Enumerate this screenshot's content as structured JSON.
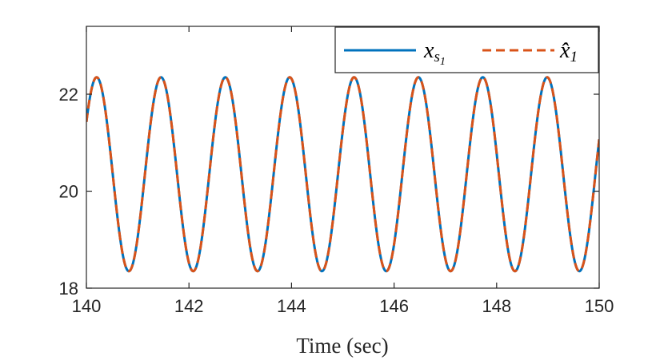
{
  "chart_data": {
    "type": "line",
    "title": "",
    "xlabel": "Time (sec)",
    "ylabel": "",
    "xlim": [
      140,
      150
    ],
    "ylim": [
      18,
      23.4
    ],
    "xticks": [
      140,
      142,
      144,
      146,
      148,
      150
    ],
    "xtick_labels": [
      "140",
      "142",
      "144",
      "146",
      "148",
      "150"
    ],
    "yticks": [
      18,
      20,
      22
    ],
    "ytick_labels": [
      "18",
      "20",
      "22"
    ],
    "grid": false,
    "legend_position": "top-right",
    "series": [
      {
        "name": "x_{s_1}",
        "label_main": "x",
        "label_sub": "s",
        "label_subsub": "1",
        "color": "#0072BD",
        "line_style": "solid",
        "function": "sinusoid",
        "offset": 20.35,
        "amplitude": 2.0,
        "period": 1.255,
        "peak_times": [
          140.2,
          141.47,
          142.72,
          143.97,
          145.22,
          146.47,
          147.73,
          148.98
        ],
        "trough_times": [
          140.82,
          142.08,
          143.34,
          144.6,
          145.85,
          147.1,
          148.36,
          149.6
        ],
        "peak_value": 22.35,
        "trough_value": 18.35,
        "start_value": 21.55,
        "end_value": 20.95
      },
      {
        "name": "x̂_1",
        "label_main": "x̂",
        "label_sub": "1",
        "color": "#D95319",
        "line_style": "dashed",
        "function": "sinusoid",
        "offset": 20.35,
        "amplitude": 2.0,
        "period": 1.255,
        "peak_times": [
          140.2,
          141.47,
          142.72,
          143.97,
          145.22,
          146.47,
          147.73,
          148.98
        ],
        "trough_times": [
          140.82,
          142.08,
          143.34,
          144.6,
          145.85,
          147.1,
          148.36,
          149.6
        ],
        "peak_value": 22.35,
        "trough_value": 18.35,
        "start_value": 21.55,
        "end_value": 20.95
      }
    ]
  }
}
